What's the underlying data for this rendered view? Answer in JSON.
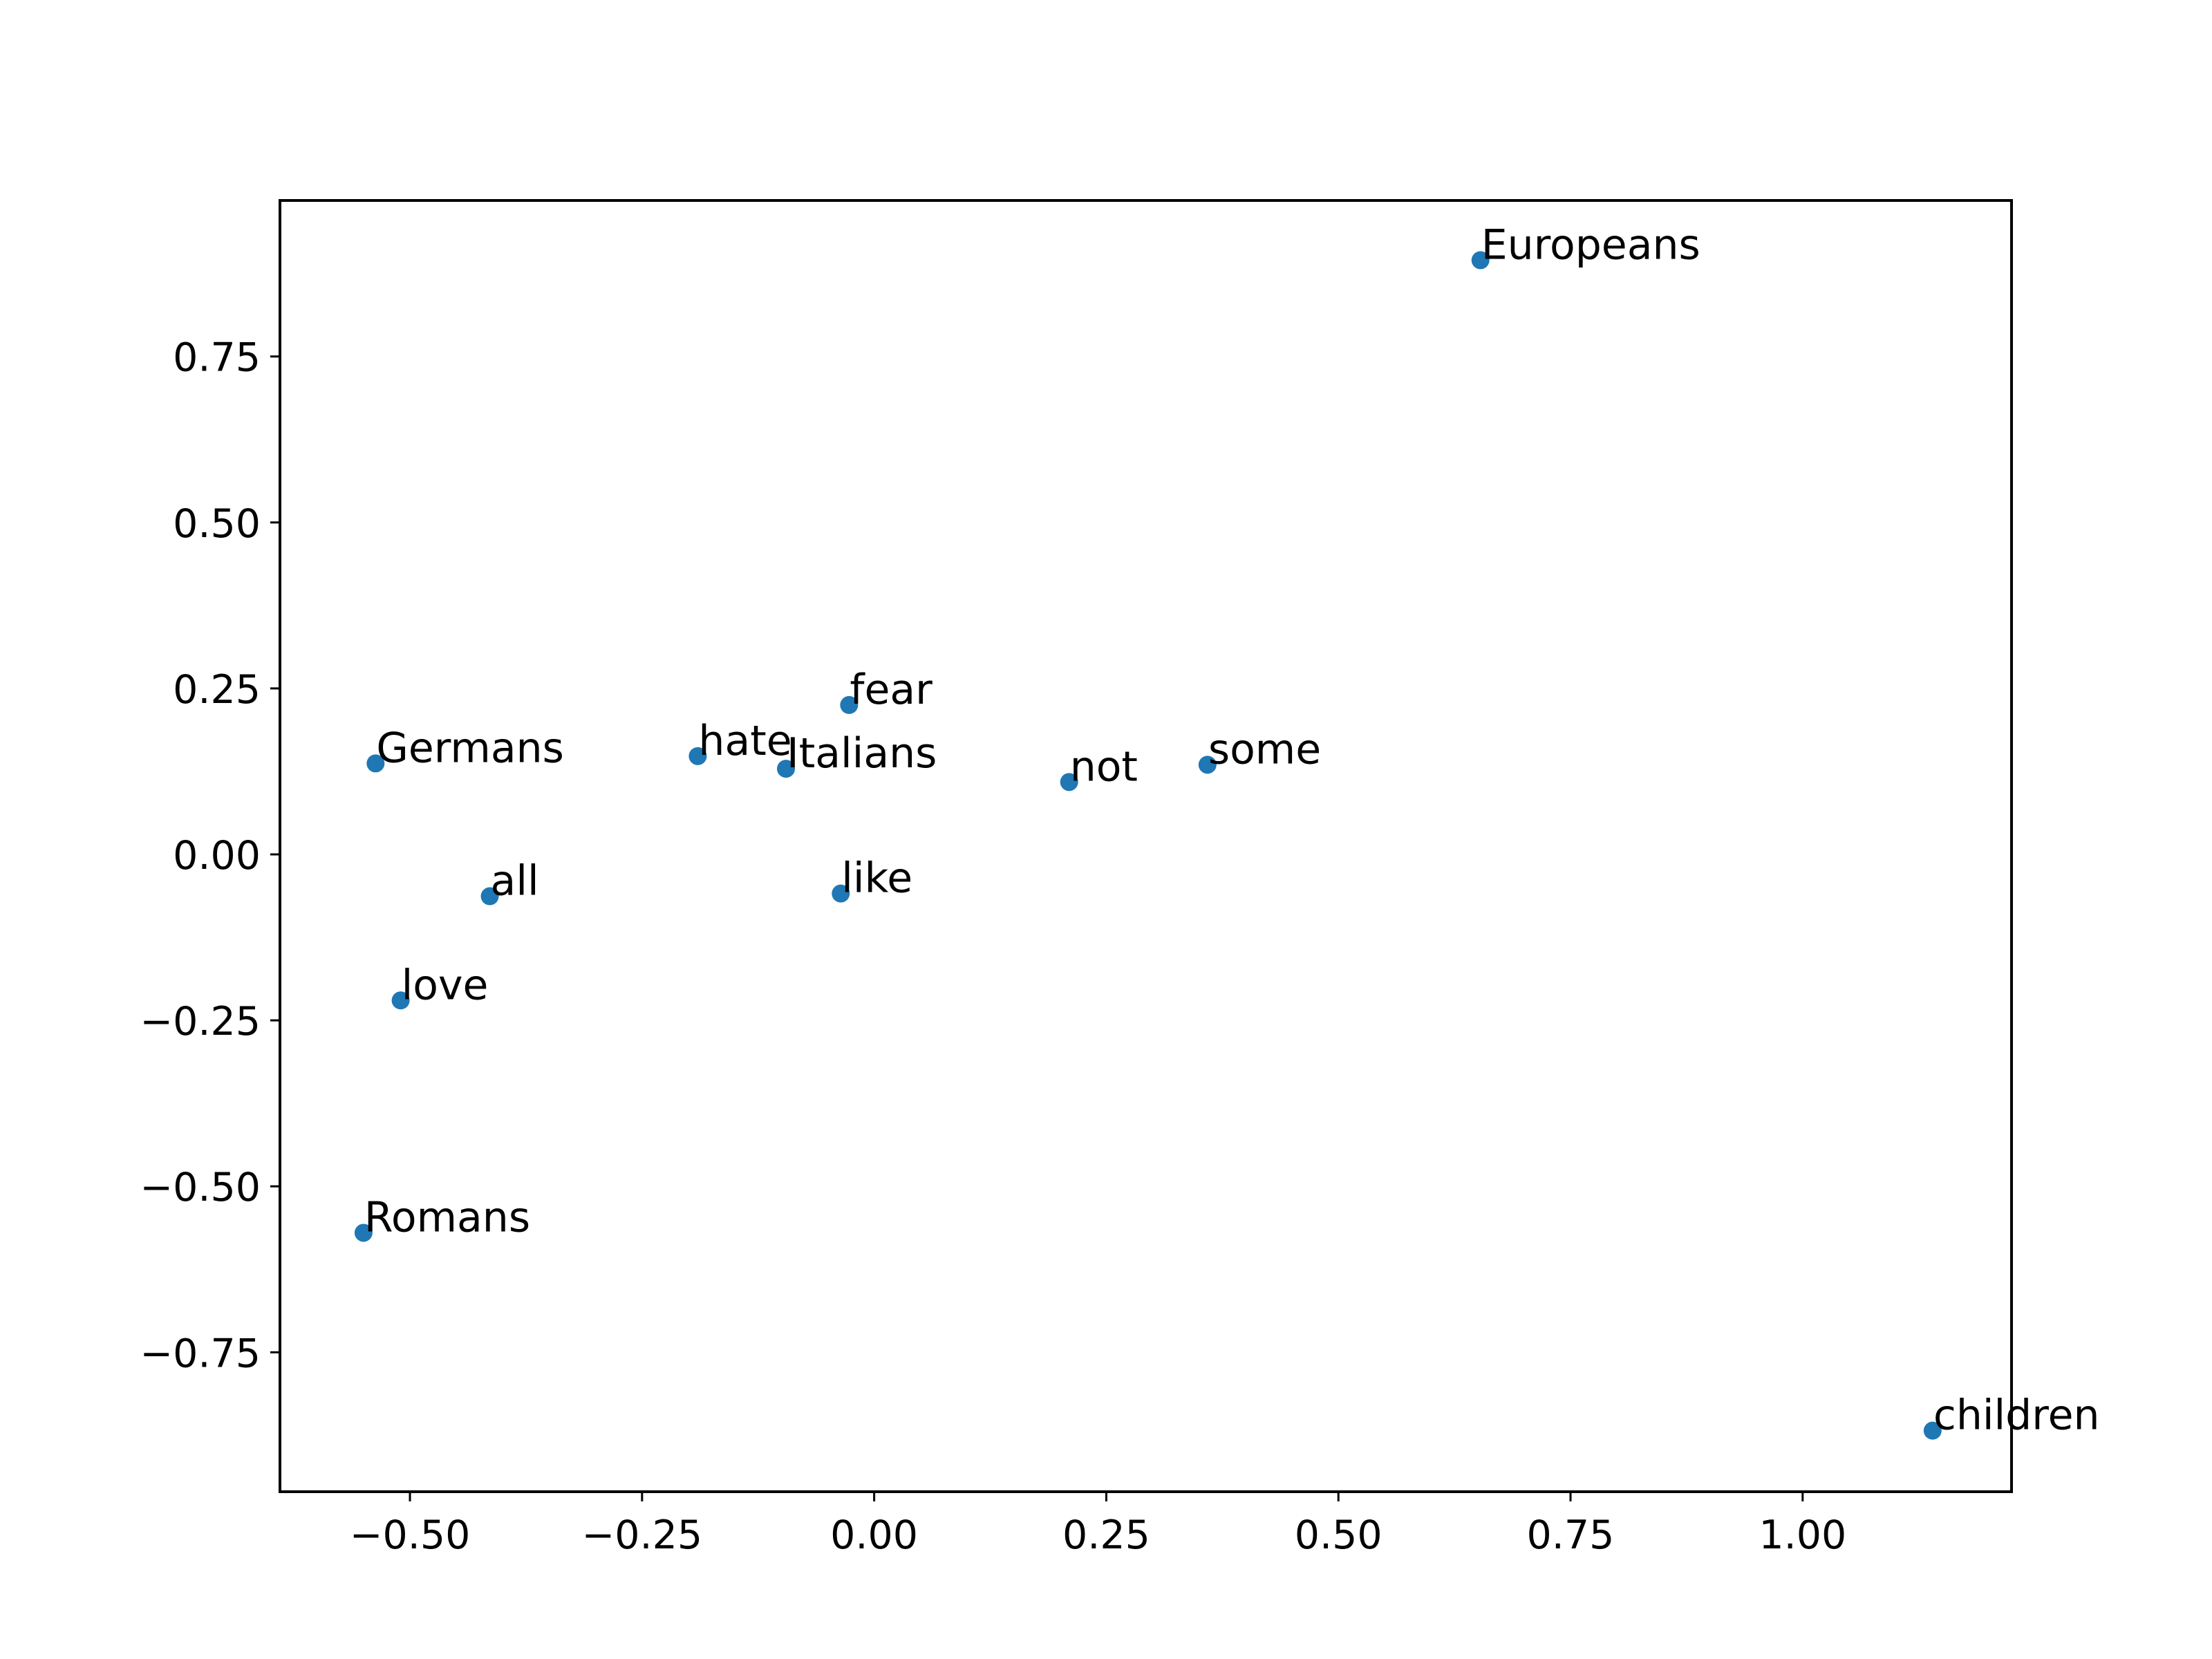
{
  "chart_data": {
    "type": "scatter",
    "title": "",
    "xlabel": "",
    "ylabel": "",
    "xlim": [
      -0.64,
      1.225
    ],
    "ylim": [
      -0.96,
      0.985
    ],
    "grid": false,
    "marker_color": "#1f77b4",
    "x_ticks": [
      {
        "value": -0.5,
        "label": "−0.50"
      },
      {
        "value": -0.25,
        "label": "−0.25"
      },
      {
        "value": 0.0,
        "label": "0.00"
      },
      {
        "value": 0.25,
        "label": "0.25"
      },
      {
        "value": 0.5,
        "label": "0.50"
      },
      {
        "value": 0.75,
        "label": "0.75"
      },
      {
        "value": 1.0,
        "label": "1.00"
      }
    ],
    "y_ticks": [
      {
        "value": 0.75,
        "label": "0.75"
      },
      {
        "value": 0.5,
        "label": "0.50"
      },
      {
        "value": 0.25,
        "label": "0.25"
      },
      {
        "value": 0.0,
        "label": "0.00"
      },
      {
        "value": -0.25,
        "label": "−0.25"
      },
      {
        "value": -0.5,
        "label": "−0.50"
      },
      {
        "value": -0.75,
        "label": "−0.75"
      }
    ],
    "points": [
      {
        "label": "Europeans",
        "x": 0.653,
        "y": 0.895
      },
      {
        "label": "fear",
        "x": -0.027,
        "y": 0.225
      },
      {
        "label": "Germans",
        "x": -0.537,
        "y": 0.137
      },
      {
        "label": "hate",
        "x": -0.19,
        "y": 0.148
      },
      {
        "label": "Italians",
        "x": -0.095,
        "y": 0.129
      },
      {
        "label": "not",
        "x": 0.21,
        "y": 0.109
      },
      {
        "label": "some",
        "x": 0.359,
        "y": 0.135
      },
      {
        "label": "all",
        "x": -0.414,
        "y": -0.063
      },
      {
        "label": "like",
        "x": -0.036,
        "y": -0.059
      },
      {
        "label": "love",
        "x": -0.51,
        "y": -0.22
      },
      {
        "label": "Romans",
        "x": -0.55,
        "y": -0.57
      },
      {
        "label": "children",
        "x": 1.14,
        "y": -0.868
      }
    ]
  }
}
